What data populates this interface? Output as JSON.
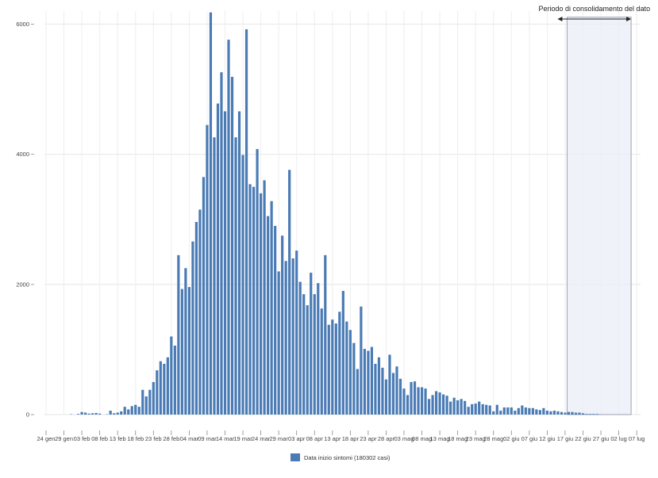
{
  "chart_data": {
    "type": "bar",
    "xlabel": "",
    "ylabel": "",
    "ylim": [
      0,
      6200
    ],
    "yticks": [
      0,
      2000,
      4000,
      6000
    ],
    "ytick_labels": [
      "0",
      "2000",
      "4000",
      "6000"
    ],
    "x_tick_labels": [
      "24 gen",
      "29 gen",
      "03 feb",
      "08 feb",
      "13 feb",
      "18 feb",
      "23 feb",
      "28 feb",
      "04 mar",
      "09 mar",
      "14 mar",
      "19 mar",
      "24 mar",
      "29 mar",
      "03 apr",
      "08 apr",
      "13 apr",
      "18 apr",
      "23 apr",
      "28 apr",
      "03 mag",
      "08 mag",
      "13 mag",
      "18 mag",
      "23 mag",
      "28 mag",
      "02 giu",
      "07 giu",
      "12 giu",
      "17 giu",
      "22 giu",
      "27 giu",
      "02 lug",
      "07 lug"
    ],
    "grid": true,
    "legend_position": "bottom-center",
    "colors": {
      "bar": "#4a7bb5",
      "shade_fill": "#eaedf6",
      "shade_stroke": "#9aa3b5"
    },
    "annotation": {
      "label": "Periodo di consolidamento del dato",
      "from_index": 146,
      "to_index": 163
    },
    "series": [
      {
        "name": "Data inizio sintomi (180302 casi)",
        "values": [
          0,
          0,
          0,
          0,
          0,
          0,
          0,
          5,
          0,
          10,
          40,
          30,
          15,
          20,
          25,
          15,
          0,
          5,
          60,
          20,
          30,
          50,
          120,
          80,
          130,
          150,
          120,
          380,
          280,
          380,
          500,
          680,
          820,
          780,
          880,
          1200,
          1060,
          2450,
          1930,
          2250,
          1960,
          2660,
          2960,
          3150,
          3650,
          4450,
          6180,
          4260,
          4780,
          5260,
          4660,
          5760,
          5190,
          4260,
          4660,
          3990,
          5920,
          3540,
          3500,
          4080,
          3400,
          3600,
          3050,
          3280,
          2900,
          2200,
          2750,
          2360,
          3760,
          2400,
          2520,
          2040,
          1850,
          1680,
          2180,
          1850,
          2020,
          1630,
          2450,
          1380,
          1460,
          1400,
          1580,
          1900,
          1430,
          1300,
          1100,
          700,
          1660,
          1010,
          980,
          1040,
          780,
          880,
          720,
          540,
          920,
          640,
          740,
          550,
          400,
          300,
          500,
          510,
          420,
          420,
          400,
          240,
          300,
          360,
          340,
          310,
          290,
          200,
          260,
          220,
          240,
          210,
          120,
          160,
          170,
          200,
          160,
          150,
          140,
          50,
          150,
          60,
          110,
          110,
          110,
          60,
          100,
          140,
          110,
          100,
          100,
          80,
          70,
          100,
          60,
          50,
          60,
          50,
          40,
          30,
          40,
          40,
          30,
          30,
          20,
          10,
          10,
          10,
          10
        ]
      }
    ]
  }
}
